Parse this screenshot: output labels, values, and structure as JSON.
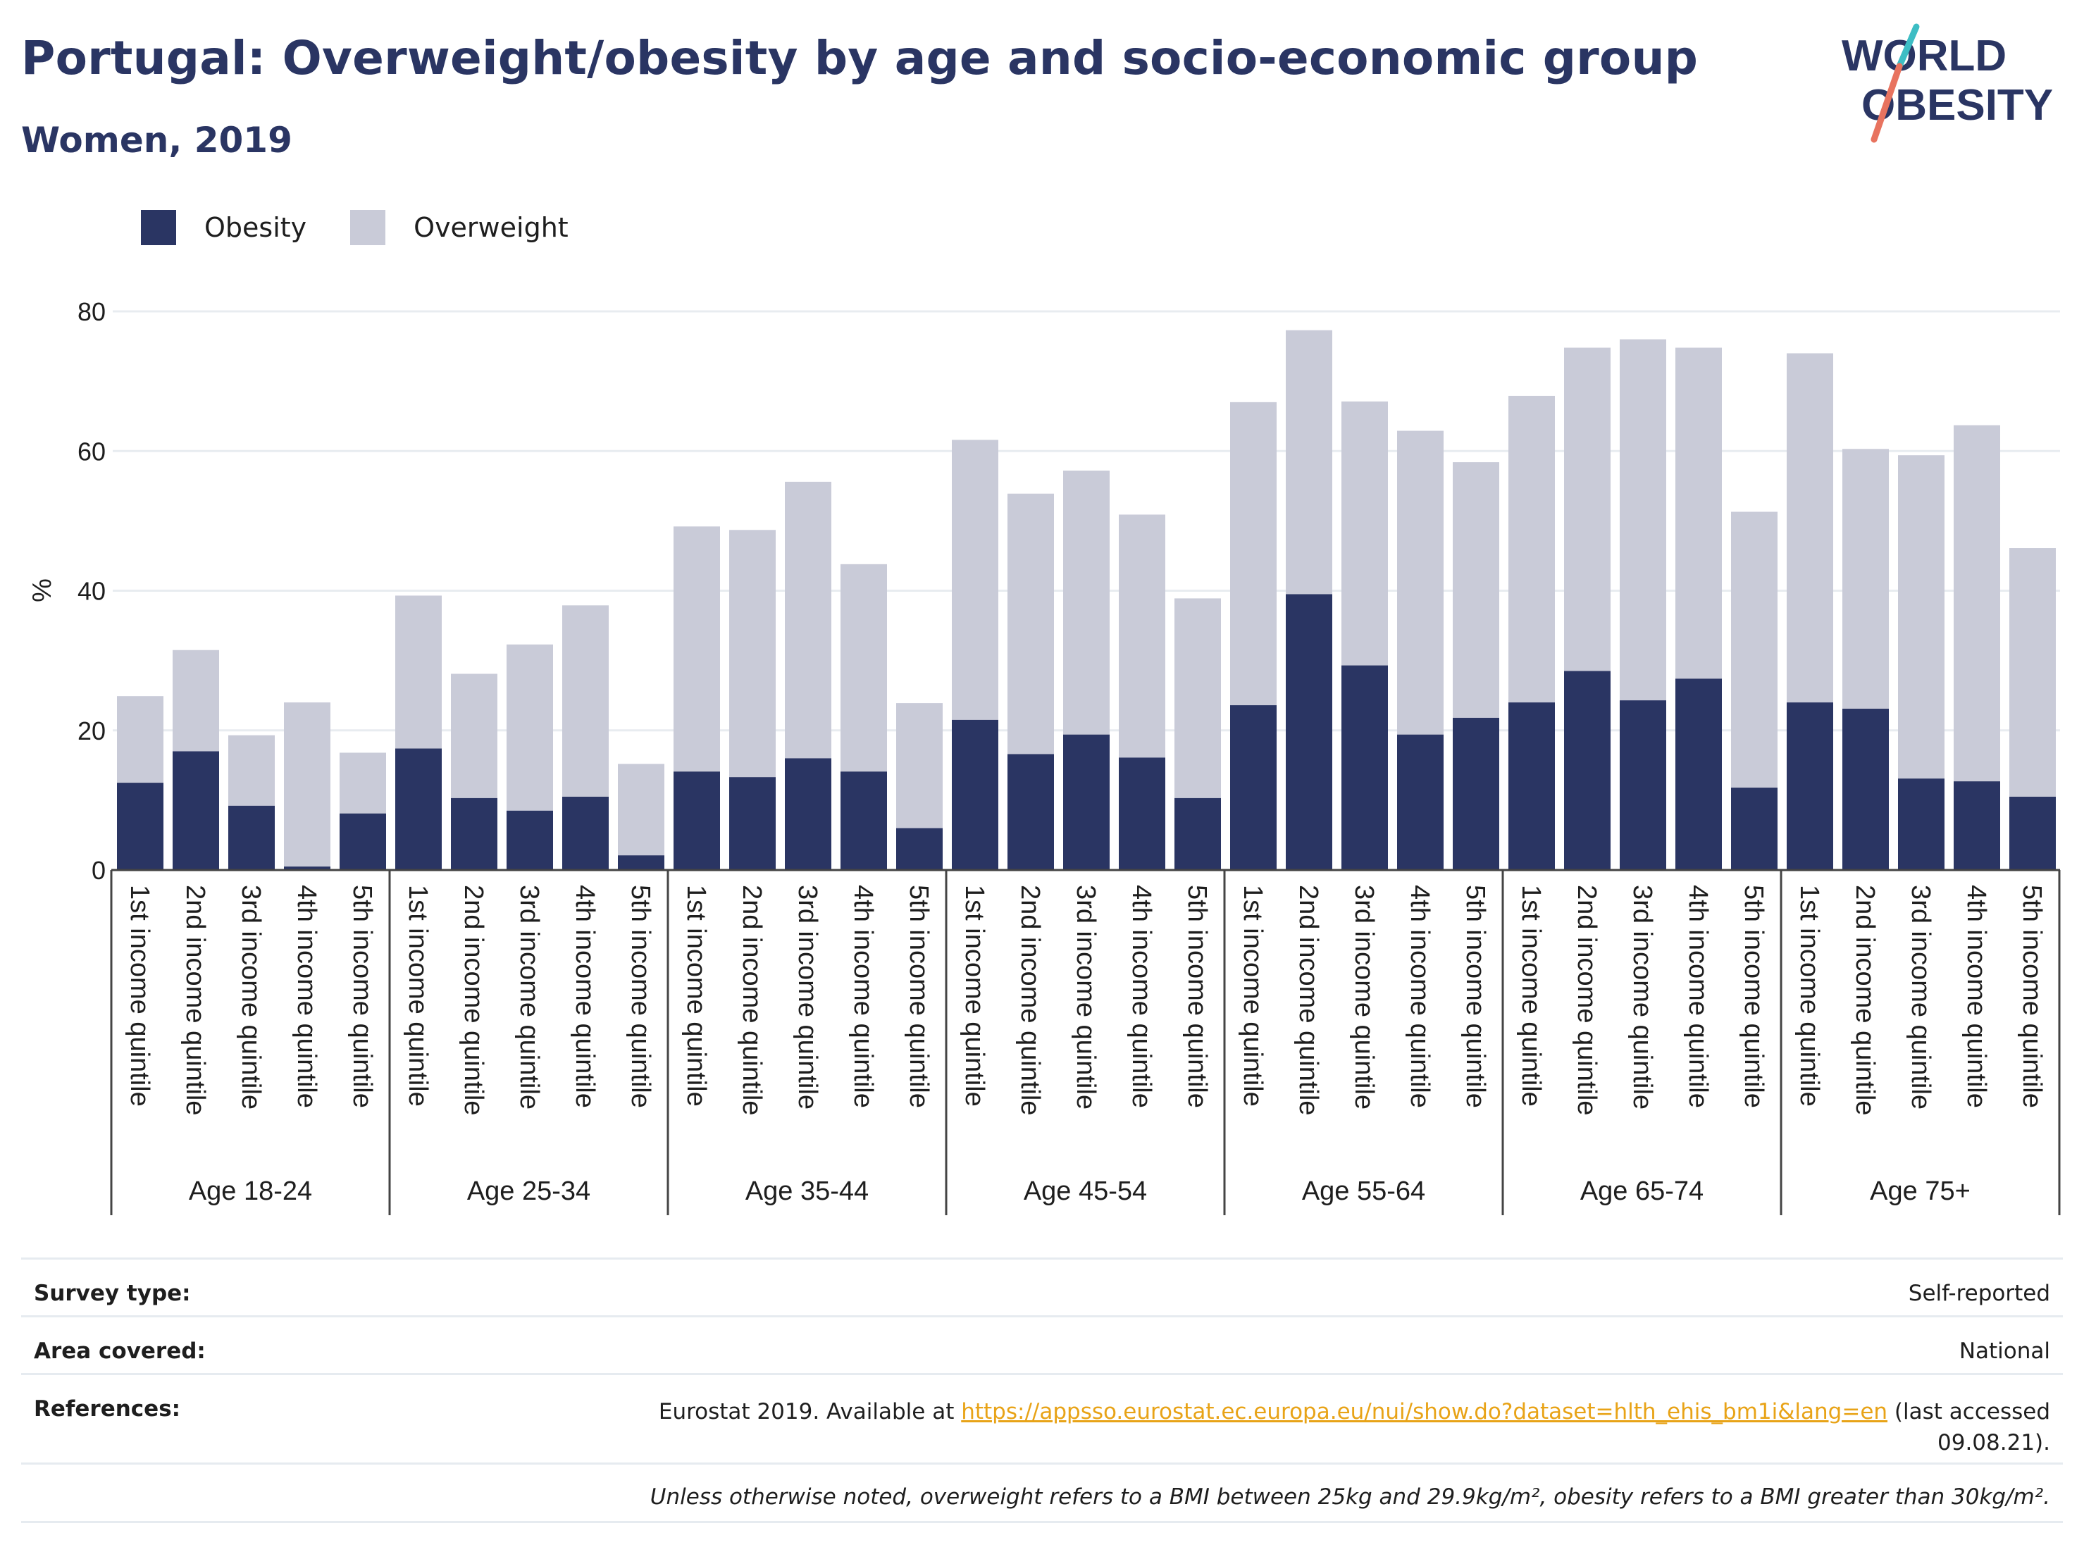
{
  "title": "Portugal: Overweight/obesity by age and socio-economic group",
  "subtitle": "Women, 2019",
  "logo": {
    "line1": "WORLD",
    "line2": "OBESITY"
  },
  "colors": {
    "obesity": "#2a3563",
    "overweight": "#c9cbd8",
    "accent_teal": "#3dbdc4",
    "accent_coral": "#e8735f"
  },
  "chart_data": {
    "type": "bar",
    "stacked": true,
    "ylabel": "%",
    "ylim": [
      0,
      80
    ],
    "yticks": [
      0,
      20,
      40,
      60,
      80
    ],
    "grid": true,
    "legend_position": "top-left",
    "categories": [
      "1st income quintile",
      "2nd income quintile",
      "3rd income quintile",
      "4th income quintile",
      "5th income quintile"
    ],
    "groups": [
      "Age 18-24",
      "Age 25-34",
      "Age 35-44",
      "Age 45-54",
      "Age 55-64",
      "Age 65-74",
      "Age 75+"
    ],
    "series": [
      {
        "name": "Obesity",
        "values": [
          [
            12.5,
            17.0,
            9.2,
            0.5,
            8.1
          ],
          [
            17.4,
            10.3,
            8.5,
            10.5,
            2.1
          ],
          [
            14.1,
            13.3,
            16.0,
            14.1,
            6.0
          ],
          [
            21.5,
            16.6,
            19.4,
            16.1,
            10.3
          ],
          [
            23.6,
            39.5,
            29.3,
            19.4,
            21.8
          ],
          [
            24.0,
            28.5,
            24.3,
            27.4,
            11.8
          ],
          [
            24.0,
            23.1,
            13.1,
            12.7,
            10.5
          ]
        ]
      },
      {
        "name": "Overweight",
        "values": [
          [
            12.4,
            14.5,
            10.1,
            23.5,
            8.7
          ],
          [
            21.9,
            17.8,
            23.8,
            27.4,
            13.1
          ],
          [
            35.1,
            35.4,
            39.6,
            29.7,
            17.9
          ],
          [
            40.1,
            37.3,
            37.8,
            34.8,
            28.6
          ],
          [
            43.4,
            37.8,
            37.8,
            43.5,
            36.6
          ],
          [
            43.9,
            46.3,
            51.7,
            47.4,
            39.5
          ],
          [
            50.0,
            37.2,
            46.3,
            51.0,
            35.6
          ]
        ]
      }
    ]
  },
  "info": {
    "survey_label": "Survey type:",
    "survey_value": "Self-reported",
    "area_label": "Area covered:",
    "area_value": "National",
    "references_label": "References:",
    "references_prefix": "Eurostat 2019. Available at",
    "references_link": "https://appsso.eurostat.ec.europa.eu/nui/show.do?dataset=hlth_ehis_bm1i&lang=en",
    "references_suffix": "(last accessed",
    "references_date": "09.08.21).",
    "footnote": "Unless otherwise noted, overweight refers to a BMI between 25kg and 29.9kg/m², obesity refers to a BMI greater than 30kg/m²."
  }
}
